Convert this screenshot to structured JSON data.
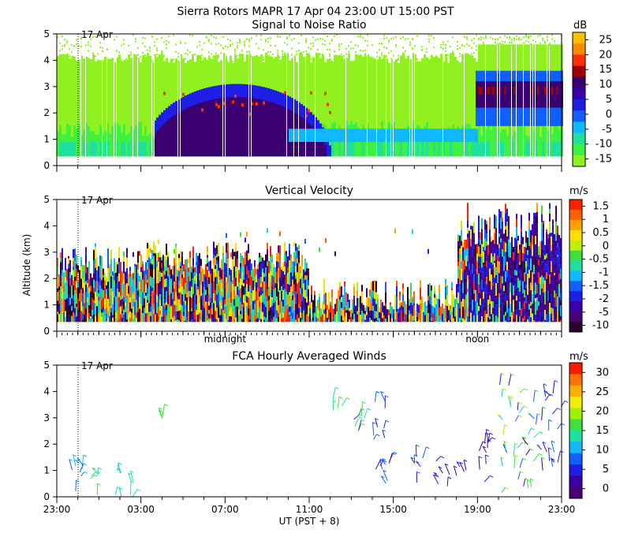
{
  "title": "Sierra Rotors   MAPR 17 Apr 04   23:00 UT   15:00   PST",
  "shared": {
    "ylabel": "Altitude (km)",
    "xlabel": "UT  (PST + 8)",
    "date_marker": "17 Apr",
    "x_tick_labels": [
      "23:00",
      "03:00",
      "07:00",
      "11:00",
      "15:00",
      "19:00",
      "23:00"
    ],
    "x_tick_hours": [
      0,
      4,
      8,
      12,
      16,
      20,
      24
    ],
    "day_markers": [
      {
        "label": "midnight",
        "hour": 8
      },
      {
        "label": "noon",
        "hour": 20
      }
    ],
    "date_marker_hour": 1,
    "y_ticks": [
      0,
      1,
      2,
      3,
      4,
      5
    ]
  },
  "panels": [
    {
      "title": "Signal to Noise Ratio",
      "units": "dB"
    },
    {
      "title": "Vertical Velocity",
      "units": "m/s"
    },
    {
      "title": "FCA Hourly Averaged Winds",
      "units": "m/s"
    }
  ],
  "chart_data": [
    {
      "type": "heatmap",
      "title": "Signal to Noise Ratio",
      "xlabel": "",
      "ylabel": "",
      "xlim": [
        0,
        24
      ],
      "ylim": [
        0,
        5
      ],
      "colorbar": {
        "units": "dB",
        "ticks": [
          25,
          20,
          15,
          10,
          5,
          0,
          -5,
          -10,
          -15
        ],
        "colors": [
          "#ffc000",
          "#ff8800",
          "#ff3000",
          "#a00000",
          "#3a0070",
          "#3a00a8",
          "#1e1ee6",
          "#1060ff",
          "#10b8ff",
          "#20e0a0",
          "#40f040",
          "#90f020"
        ]
      }
    },
    {
      "type": "heatmap",
      "title": "Vertical Velocity",
      "xlabel": "",
      "ylabel": "Altitude (km)",
      "xlim": [
        0,
        24
      ],
      "ylim": [
        0,
        5
      ],
      "colorbar": {
        "units": "m/s",
        "ticks": [
          1.5,
          1,
          0.5,
          0,
          -0.5,
          -1,
          -1.5,
          -2,
          -5,
          -10
        ],
        "colors": [
          "#ff2000",
          "#ff6000",
          "#ffa000",
          "#ffe000",
          "#c0f000",
          "#40e040",
          "#20e0a0",
          "#10b8ff",
          "#1060ff",
          "#1e1ee6",
          "#3a00a8",
          "#4a0070",
          "#2a0030"
        ]
      }
    },
    {
      "type": "scatter",
      "title": "FCA Hourly Averaged Winds",
      "xlabel": "UT  (PST + 8)",
      "ylabel": "",
      "xlim": [
        0,
        24
      ],
      "ylim": [
        0,
        5
      ],
      "colorbar": {
        "units": "m/s",
        "ticks": [
          30,
          25,
          20,
          15,
          10,
          5,
          0
        ],
        "colors": [
          "#ff1800",
          "#ff7000",
          "#ffb000",
          "#f0f000",
          "#a0f000",
          "#40e040",
          "#20e0a0",
          "#10b8ff",
          "#1060ff",
          "#1e1ee6",
          "#3a00a8",
          "#4a0070"
        ]
      }
    }
  ]
}
